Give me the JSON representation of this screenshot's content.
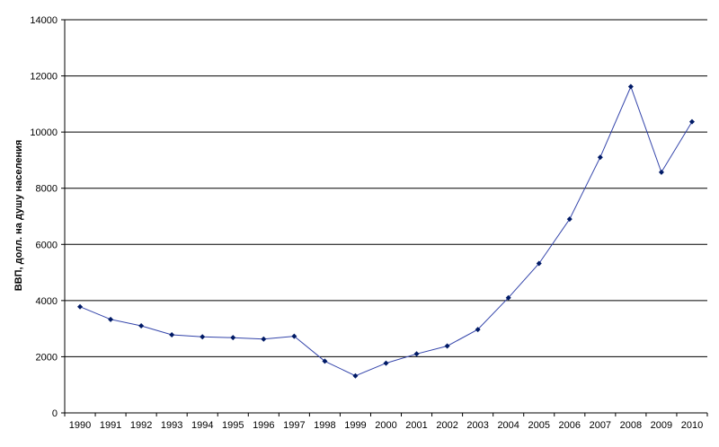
{
  "chart_data": {
    "type": "line",
    "title": "",
    "xlabel": "",
    "ylabel": "ВВП, долл. на душу населения",
    "x": [
      "1990",
      "1991",
      "1992",
      "1993",
      "1994",
      "1995",
      "1996",
      "1997",
      "1998",
      "1999",
      "2000",
      "2001",
      "2002",
      "2003",
      "2004",
      "2005",
      "2006",
      "2007",
      "2008",
      "2009",
      "2010"
    ],
    "series": [
      {
        "values": [
          3780,
          3330,
          3100,
          2780,
          2710,
          2680,
          2630,
          2730,
          1840,
          1320,
          1770,
          2100,
          2380,
          2970,
          4100,
          5320,
          6900,
          9100,
          11620,
          8570,
          10370
        ]
      }
    ],
    "ylim": [
      0,
      14000
    ],
    "yticks": [
      0,
      2000,
      4000,
      6000,
      8000,
      10000,
      12000,
      14000
    ],
    "grid": "horizontal",
    "legend": "none",
    "colors": {
      "line": "#3344aa",
      "marker": "#001a66",
      "grid": "#000000",
      "axis": "#000000"
    }
  }
}
